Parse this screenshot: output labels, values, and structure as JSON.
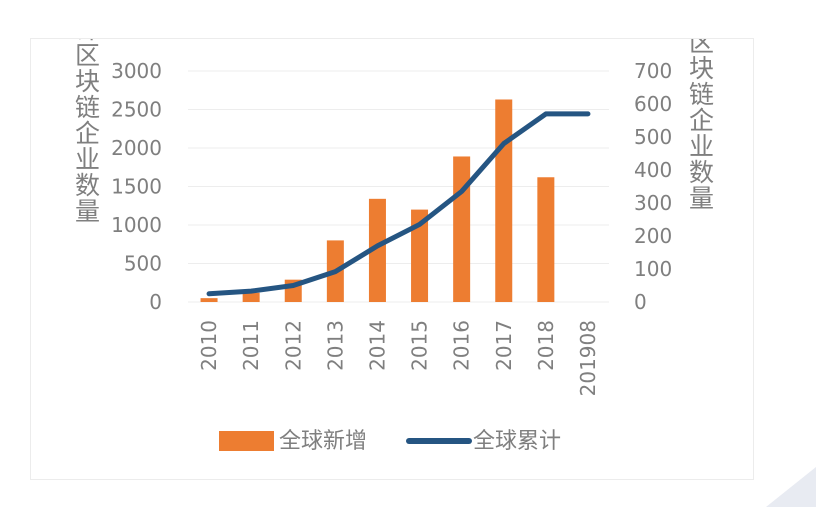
{
  "chart_data": {
    "type": "bar+line",
    "categories": [
      "2010",
      "2011",
      "2012",
      "2013",
      "2014",
      "2015",
      "2016",
      "2017",
      "2018",
      "201908"
    ],
    "series": [
      {
        "name": "全球新增",
        "type": "bar",
        "axis": "left",
        "values": [
          50,
          120,
          290,
          800,
          1340,
          1200,
          1890,
          2630,
          1620,
          null
        ]
      },
      {
        "name": "全球累计",
        "type": "line",
        "axis": "right",
        "values": [
          25,
          33,
          50,
          92,
          170,
          235,
          335,
          480,
          570,
          570
        ]
      }
    ],
    "ylabel": "全球累计区块链企业数量",
    "y2label": "年新增区块链企业数量",
    "ylim": [
      0,
      3000
    ],
    "y2lim": [
      0,
      700
    ],
    "yticks": [
      "0",
      "500",
      "1000",
      "1500",
      "2000",
      "2500",
      "3000"
    ],
    "y2ticks": [
      "0",
      "100",
      "200",
      "300",
      "400",
      "500",
      "600",
      "700"
    ],
    "grid": true,
    "legend_position": "bottom",
    "colors": {
      "bar": "#ED7D31",
      "line": "#255582",
      "text": "#7F7F7F",
      "grid": "#EDEDED"
    }
  }
}
